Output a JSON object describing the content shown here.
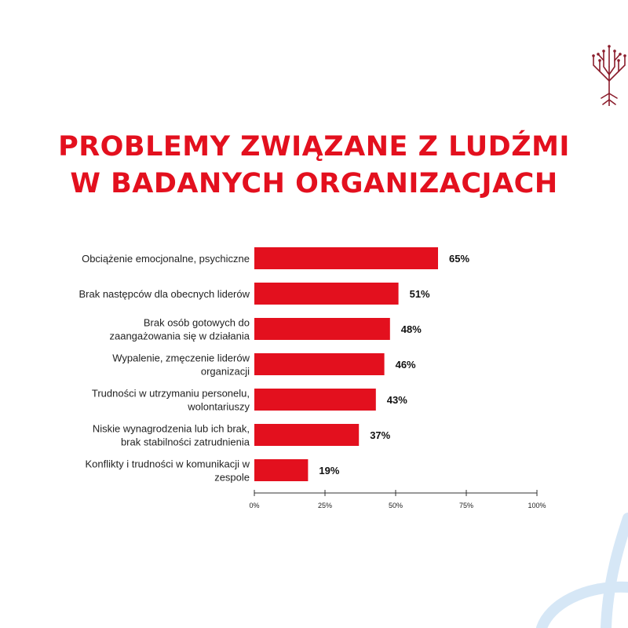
{
  "title_line1": "PROBLEMY ZWIĄZANE Z LUDŹMI",
  "title_line2": "W BADANYCH ORGANIZACJACH",
  "colors": {
    "accent": "#e3101e",
    "logo": "#8b1d2c",
    "deco": "#d6e7f6"
  },
  "chart_data": {
    "type": "bar",
    "orientation": "horizontal",
    "categories": [
      [
        "Obciążenie emocjonalne, psychiczne"
      ],
      [
        "Brak następców dla obecnych liderów"
      ],
      [
        "Brak osób gotowych do",
        "zaangażowania się w działania"
      ],
      [
        "Wypalenie, zmęczenie liderów",
        "organizacji"
      ],
      [
        "Trudności w utrzymaniu personelu,",
        "wolontariuszy"
      ],
      [
        "Niskie wynagrodzenia lub ich brak,",
        "brak stabilności zatrudnienia"
      ],
      [
        "Konflikty i trudności w komunikacji w",
        "zespole"
      ]
    ],
    "values": [
      65,
      51,
      48,
      46,
      43,
      37,
      19
    ],
    "value_labels": [
      "65%",
      "51%",
      "48%",
      "46%",
      "43%",
      "37%",
      "19%"
    ],
    "xlim": [
      0,
      100
    ],
    "xticks": [
      "0%",
      "25%",
      "50%",
      "75%",
      "100%"
    ],
    "grid": false
  }
}
